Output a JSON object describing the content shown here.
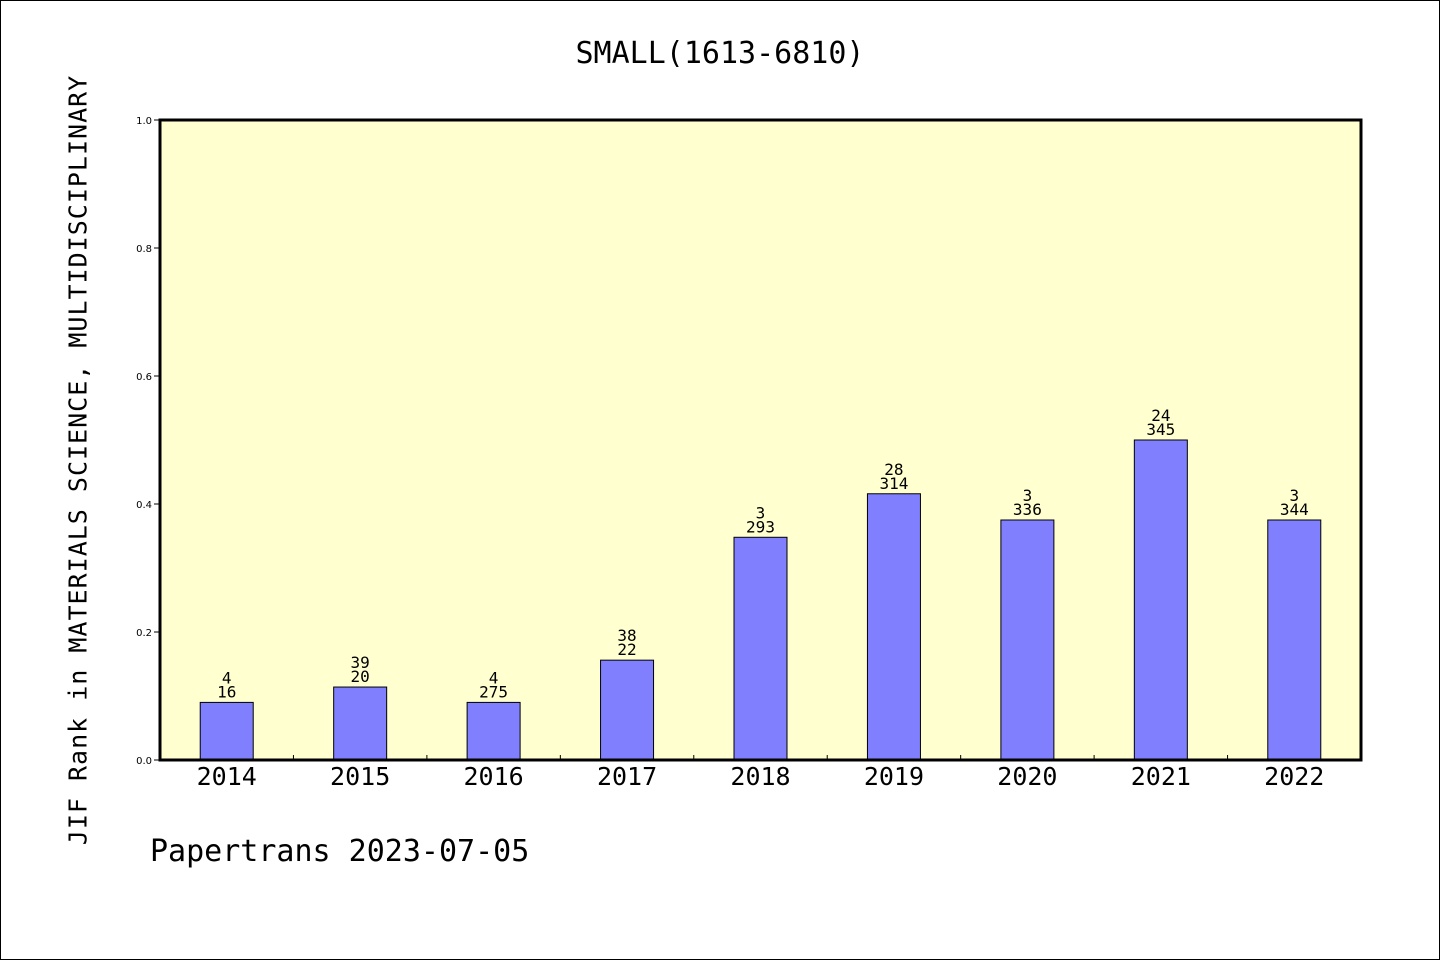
{
  "chart_data": {
    "type": "bar",
    "title": "SMALL(1613-6810)",
    "ylabel": "JIF Rank in MATERIALS SCIENCE, MULTIDISCIPLINARY",
    "xlabel": "",
    "ylim": [
      0,
      1.0
    ],
    "yticks": [
      "0.0",
      "0.2",
      "0.4",
      "0.6",
      "0.8",
      "1.0"
    ],
    "yticks_values": [
      0,
      0.2,
      0.4,
      0.6,
      0.8,
      1.0
    ],
    "grid": false,
    "categories": [
      "2014",
      "2015",
      "2016",
      "2017",
      "2018",
      "2019",
      "2020",
      "2021",
      "2022"
    ],
    "values": [
      0.09,
      0.114,
      0.09,
      0.156,
      0.348,
      0.416,
      0.375,
      0.5,
      0.375
    ],
    "labels_top": [
      "4",
      "39",
      "4",
      "38",
      "3",
      "28",
      "3",
      "24",
      "3"
    ],
    "labels_bottom": [
      "16",
      "20",
      "275",
      "22",
      "293",
      "314",
      "336",
      "345",
      "344"
    ],
    "colors": {
      "bar": "#8080ff",
      "plot_background": "#ffffd0",
      "axis": "#000000"
    }
  },
  "footer": "Papertrans 2023-07-05"
}
